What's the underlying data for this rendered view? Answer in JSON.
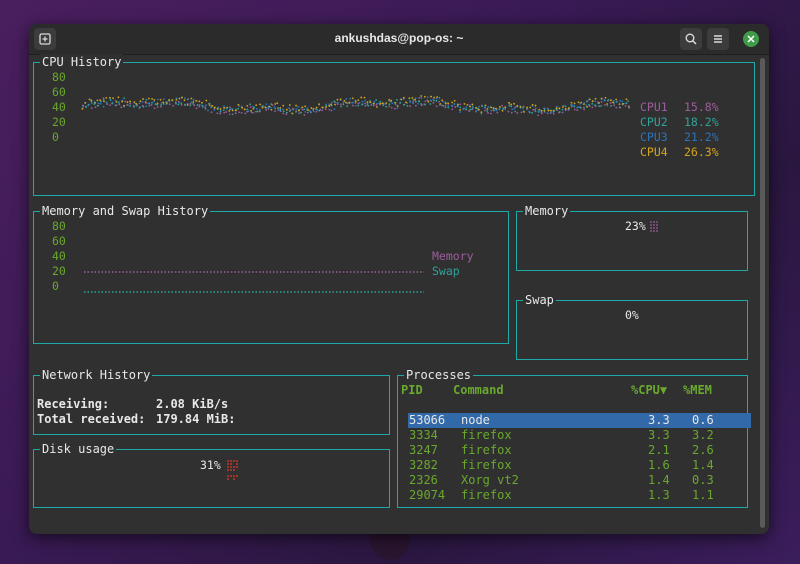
{
  "window": {
    "title": "ankushdas@pop-os: ~"
  },
  "cpu": {
    "title": "CPU History",
    "y_ticks": [
      "80",
      "60",
      "40",
      "20",
      "0"
    ],
    "legend": [
      {
        "name": "CPU1",
        "value": "15.8%",
        "color": "#9d5d9d"
      },
      {
        "name": "CPU2",
        "value": "18.2%",
        "color": "#2ea39a"
      },
      {
        "name": "CPU3",
        "value": "21.2%",
        "color": "#2c74b8"
      },
      {
        "name": "CPU4",
        "value": "26.3%",
        "color": "#d4a51c"
      }
    ]
  },
  "memhist": {
    "title": "Memory and Swap History",
    "y_ticks": [
      "80",
      "60",
      "40",
      "20",
      "0"
    ],
    "legend": [
      {
        "name": "Memory",
        "color": "#9d5d9d"
      },
      {
        "name": "Swap",
        "color": "#2ea39a"
      }
    ]
  },
  "memory": {
    "title": "Memory",
    "value": "23%"
  },
  "swap": {
    "title": "Swap",
    "value": "0%"
  },
  "network": {
    "title": "Network History",
    "receiving_label": "Receiving:",
    "receiving_value": "2.08 KiB/s",
    "total_label": "Total received:",
    "total_value": "179.84 MiB:"
  },
  "disk": {
    "title": "Disk usage",
    "value": "31%"
  },
  "processes": {
    "title": "Processes",
    "headers": {
      "pid": "PID",
      "command": "Command",
      "cpu": "%CPU▼",
      "mem": "%MEM"
    },
    "rows": [
      {
        "pid": "53066",
        "command": "node",
        "cpu": "3.3",
        "mem": "0.6"
      },
      {
        "pid": "3334",
        "command": "firefox",
        "cpu": "3.3",
        "mem": "3.2"
      },
      {
        "pid": "3247",
        "command": "firefox",
        "cpu": "2.1",
        "mem": "2.6"
      },
      {
        "pid": "3282",
        "command": "firefox",
        "cpu": "1.6",
        "mem": "1.4"
      },
      {
        "pid": "2326",
        "command": "Xorg vt2",
        "cpu": "1.4",
        "mem": "0.3"
      },
      {
        "pid": "29074",
        "command": "firefox",
        "cpu": "1.3",
        "mem": "1.1"
      }
    ],
    "selected_index": 0
  }
}
